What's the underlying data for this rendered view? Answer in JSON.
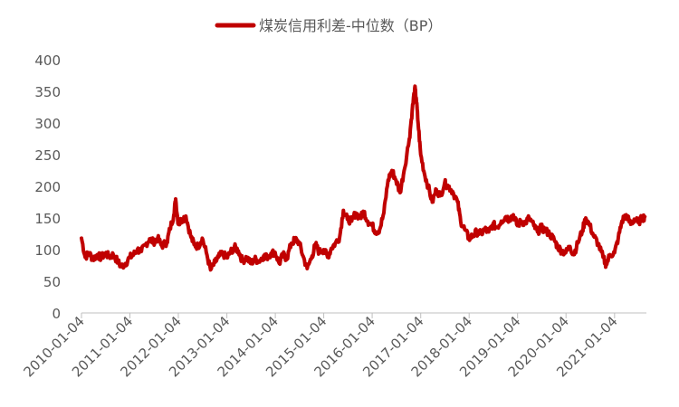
{
  "chart_data": {
    "type": "line",
    "title": "",
    "xlabel": "",
    "ylabel": "",
    "ylim": [
      0,
      400
    ],
    "yticks": [
      0,
      50,
      100,
      150,
      200,
      250,
      300,
      350,
      400
    ],
    "xticks": [
      "2010-01-04",
      "2011-01-04",
      "2012-01-04",
      "2013-01-04",
      "2014-01-04",
      "2015-01-04",
      "2016-01-04",
      "2017-01-04",
      "2018-01-04",
      "2019-01-04",
      "2020-01-04",
      "2021-01-04"
    ],
    "grid": false,
    "legend_position": "top",
    "series": [
      {
        "name": "煤炭信用利差-中位数（BP）",
        "color": "#C00000",
        "points": [
          [
            "2010-01-04",
            118
          ],
          [
            "2010-02-01",
            88
          ],
          [
            "2010-03-01",
            95
          ],
          [
            "2010-04-01",
            85
          ],
          [
            "2010-05-03",
            92
          ],
          [
            "2010-06-01",
            87
          ],
          [
            "2010-07-01",
            94
          ],
          [
            "2010-08-02",
            89
          ],
          [
            "2010-09-01",
            92
          ],
          [
            "2010-10-08",
            80
          ],
          [
            "2010-11-01",
            73
          ],
          [
            "2010-12-01",
            78
          ],
          [
            "2011-01-04",
            88
          ],
          [
            "2011-02-01",
            92
          ],
          [
            "2011-03-01",
            100
          ],
          [
            "2011-04-01",
            97
          ],
          [
            "2011-05-03",
            108
          ],
          [
            "2011-06-01",
            117
          ],
          [
            "2011-07-01",
            112
          ],
          [
            "2011-08-01",
            118
          ],
          [
            "2011-09-01",
            106
          ],
          [
            "2011-10-10",
            112
          ],
          [
            "2011-11-01",
            132
          ],
          [
            "2011-12-01",
            155
          ],
          [
            "2011-12-15",
            180
          ],
          [
            "2012-01-04",
            140
          ],
          [
            "2012-02-01",
            148
          ],
          [
            "2012-03-01",
            153
          ],
          [
            "2012-04-05",
            122
          ],
          [
            "2012-05-02",
            108
          ],
          [
            "2012-06-01",
            105
          ],
          [
            "2012-07-02",
            118
          ],
          [
            "2012-08-01",
            96
          ],
          [
            "2012-09-03",
            68
          ],
          [
            "2012-10-08",
            80
          ],
          [
            "2012-11-01",
            88
          ],
          [
            "2012-12-03",
            94
          ],
          [
            "2013-01-04",
            87
          ],
          [
            "2013-02-01",
            96
          ],
          [
            "2013-03-01",
            104
          ],
          [
            "2013-04-01",
            98
          ],
          [
            "2013-05-02",
            82
          ],
          [
            "2013-06-03",
            88
          ],
          [
            "2013-07-01",
            78
          ],
          [
            "2013-08-01",
            85
          ],
          [
            "2013-09-02",
            82
          ],
          [
            "2013-10-08",
            90
          ],
          [
            "2013-11-01",
            88
          ],
          [
            "2013-12-02",
            94
          ],
          [
            "2014-01-02",
            96
          ],
          [
            "2014-02-03",
            78
          ],
          [
            "2014-03-03",
            92
          ],
          [
            "2014-04-01",
            86
          ],
          [
            "2014-05-05",
            110
          ],
          [
            "2014-06-03",
            116
          ],
          [
            "2014-07-01",
            112
          ],
          [
            "2014-08-01",
            90
          ],
          [
            "2014-09-01",
            70
          ],
          [
            "2014-10-08",
            90
          ],
          [
            "2014-11-03",
            108
          ],
          [
            "2014-12-01",
            96
          ],
          [
            "2015-01-05",
            100
          ],
          [
            "2015-02-02",
            88
          ],
          [
            "2015-03-02",
            102
          ],
          [
            "2015-04-01",
            110
          ],
          [
            "2015-05-04",
            120
          ],
          [
            "2015-06-01",
            162
          ],
          [
            "2015-07-01",
            148
          ],
          [
            "2015-08-03",
            145
          ],
          [
            "2015-09-01",
            158
          ],
          [
            "2015-10-08",
            150
          ],
          [
            "2015-11-02",
            160
          ],
          [
            "2015-12-01",
            145
          ],
          [
            "2016-01-04",
            138
          ],
          [
            "2016-02-01",
            128
          ],
          [
            "2016-03-01",
            132
          ],
          [
            "2016-04-01",
            158
          ],
          [
            "2016-05-03",
            210
          ],
          [
            "2016-06-01",
            225
          ],
          [
            "2016-07-01",
            210
          ],
          [
            "2016-08-01",
            190
          ],
          [
            "2016-09-01",
            225
          ],
          [
            "2016-10-10",
            275
          ],
          [
            "2016-11-01",
            320
          ],
          [
            "2016-11-20",
            355
          ],
          [
            "2016-12-01",
            340
          ],
          [
            "2016-12-15",
            300
          ],
          [
            "2017-01-04",
            250
          ],
          [
            "2017-02-01",
            220
          ],
          [
            "2017-03-01",
            200
          ],
          [
            "2017-04-01",
            175
          ],
          [
            "2017-05-02",
            195
          ],
          [
            "2017-06-01",
            185
          ],
          [
            "2017-07-03",
            205
          ],
          [
            "2017-08-01",
            200
          ],
          [
            "2017-09-01",
            192
          ],
          [
            "2017-10-09",
            175
          ],
          [
            "2017-11-01",
            145
          ],
          [
            "2017-12-01",
            132
          ],
          [
            "2018-01-02",
            118
          ],
          [
            "2018-02-01",
            122
          ],
          [
            "2018-03-01",
            128
          ],
          [
            "2018-04-02",
            125
          ],
          [
            "2018-05-02",
            132
          ],
          [
            "2018-06-01",
            128
          ],
          [
            "2018-07-02",
            140
          ],
          [
            "2018-08-01",
            135
          ],
          [
            "2018-09-03",
            145
          ],
          [
            "2018-10-08",
            152
          ],
          [
            "2018-11-01",
            148
          ],
          [
            "2018-12-03",
            155
          ],
          [
            "2019-01-02",
            138
          ],
          [
            "2019-02-01",
            145
          ],
          [
            "2019-03-01",
            142
          ],
          [
            "2019-04-01",
            150
          ],
          [
            "2019-05-06",
            138
          ],
          [
            "2019-06-03",
            128
          ],
          [
            "2019-07-01",
            135
          ],
          [
            "2019-08-01",
            130
          ],
          [
            "2019-09-02",
            125
          ],
          [
            "2019-10-08",
            115
          ],
          [
            "2019-11-01",
            105
          ],
          [
            "2019-12-02",
            98
          ],
          [
            "2020-01-02",
            95
          ],
          [
            "2020-02-03",
            105
          ],
          [
            "2020-03-02",
            92
          ],
          [
            "2020-04-01",
            110
          ],
          [
            "2020-05-06",
            130
          ],
          [
            "2020-06-01",
            150
          ],
          [
            "2020-07-01",
            138
          ],
          [
            "2020-08-03",
            120
          ],
          [
            "2020-09-01",
            110
          ],
          [
            "2020-10-09",
            88
          ],
          [
            "2020-11-02",
            76
          ],
          [
            "2020-12-01",
            92
          ],
          [
            "2021-01-04",
            95
          ],
          [
            "2021-02-01",
            118
          ],
          [
            "2021-03-01",
            145
          ],
          [
            "2021-04-01",
            155
          ],
          [
            "2021-05-06",
            140
          ],
          [
            "2021-06-01",
            148
          ],
          [
            "2021-07-01",
            143
          ],
          [
            "2021-08-02",
            150
          ],
          [
            "2021-08-20",
            152
          ]
        ]
      }
    ]
  }
}
